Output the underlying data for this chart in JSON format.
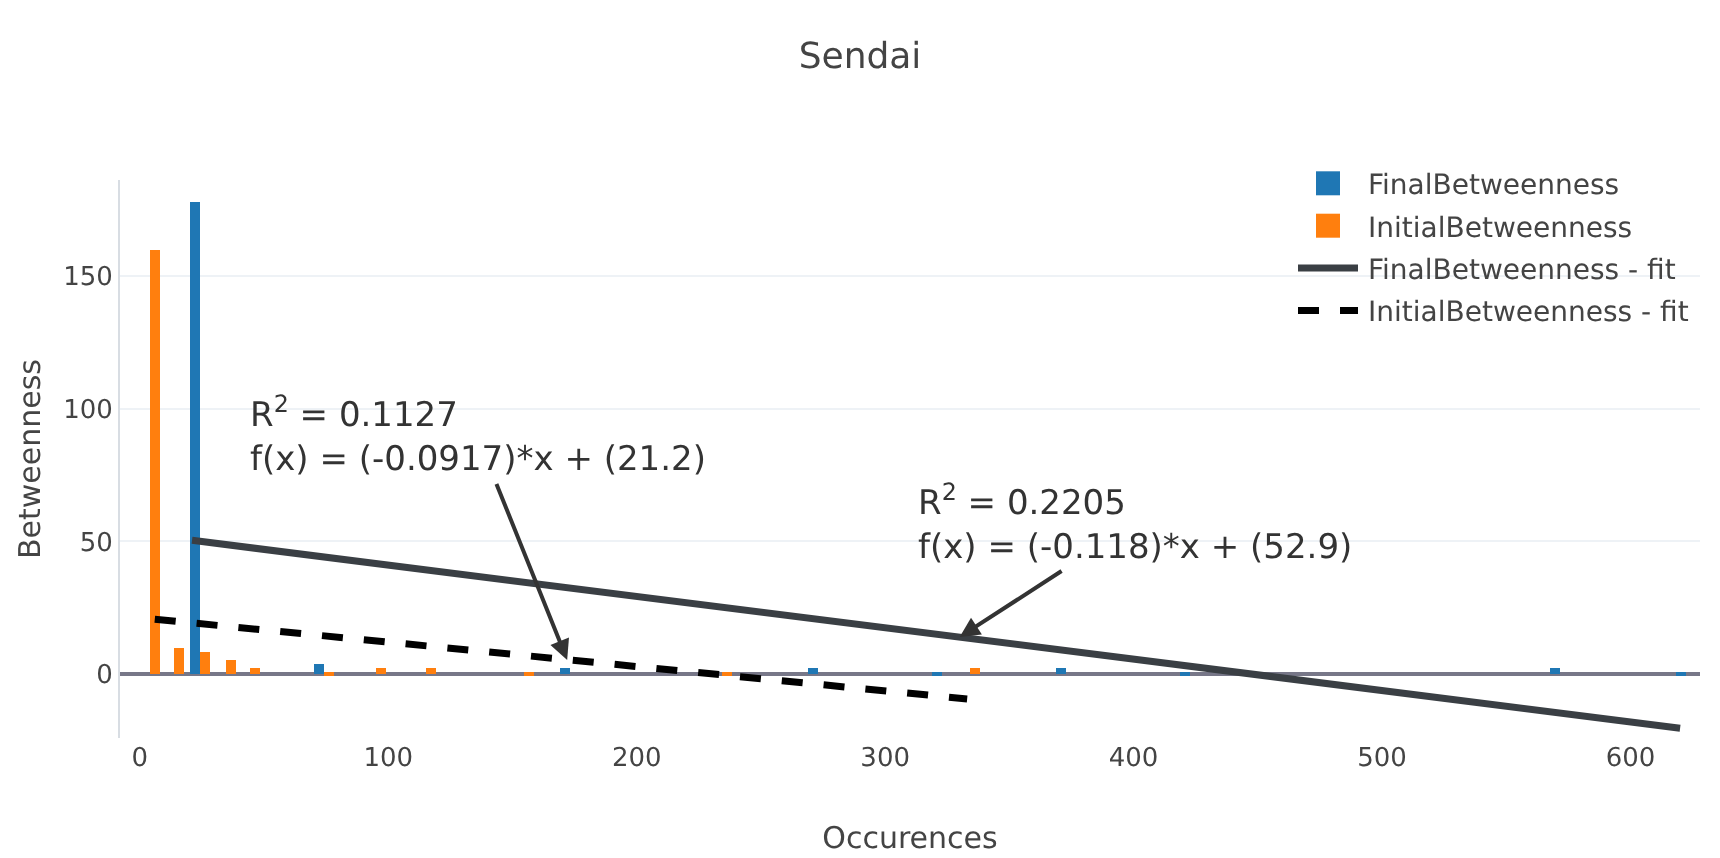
{
  "chart_data": {
    "type": "bar",
    "title": "Sendai",
    "xlabel": "Occurences",
    "ylabel": "Betweenness",
    "xlim": [
      -8,
      628
    ],
    "xticks": [
      0,
      100,
      200,
      300,
      400,
      500,
      600
    ],
    "ylim": [
      -24,
      186
    ],
    "yticks": [
      0,
      50,
      100,
      150
    ],
    "grid": "y",
    "legend": "top right",
    "marker": "none",
    "series": [
      {
        "name": "FinalBetweenness",
        "color": "#1f77b4",
        "x": [
          22,
          72,
          171,
          271,
          321,
          371,
          421,
          570,
          620
        ],
        "values": [
          178,
          4,
          2,
          2,
          1,
          2,
          1,
          2,
          1
        ]
      },
      {
        "name": "InitialBetweenness",
        "color": "#ff7f0e",
        "x": [
          6,
          16,
          26,
          37,
          46,
          76,
          97,
          117,
          157,
          236,
          336
        ],
        "values": [
          160,
          10,
          8,
          5,
          2,
          1,
          2,
          2,
          1,
          1,
          2
        ]
      },
      {
        "name": "FinalBetweenness - fit",
        "type": "line",
        "color": "#3a3f44",
        "line_style": "solid",
        "x": [
          21,
          620
        ],
        "values": [
          50.4,
          -20.3
        ]
      },
      {
        "name": "InitialBetweenness - fit",
        "type": "line",
        "color": "#000000",
        "line_style": "dashed",
        "x": [
          6,
          333
        ],
        "values": [
          20.7,
          -9.3
        ]
      }
    ],
    "annotations": [
      {
        "text": "R$^{2}$ = 0.1127\nf(x) = (-0.0917)*x + (21.2)",
        "x": 172,
        "y": 5.4
      },
      {
        "text": "R$^{2}$ = 0.2205\nf(x) = (-0.118)*x + (52.9)",
        "x": 330,
        "y": 14
      }
    ]
  }
}
